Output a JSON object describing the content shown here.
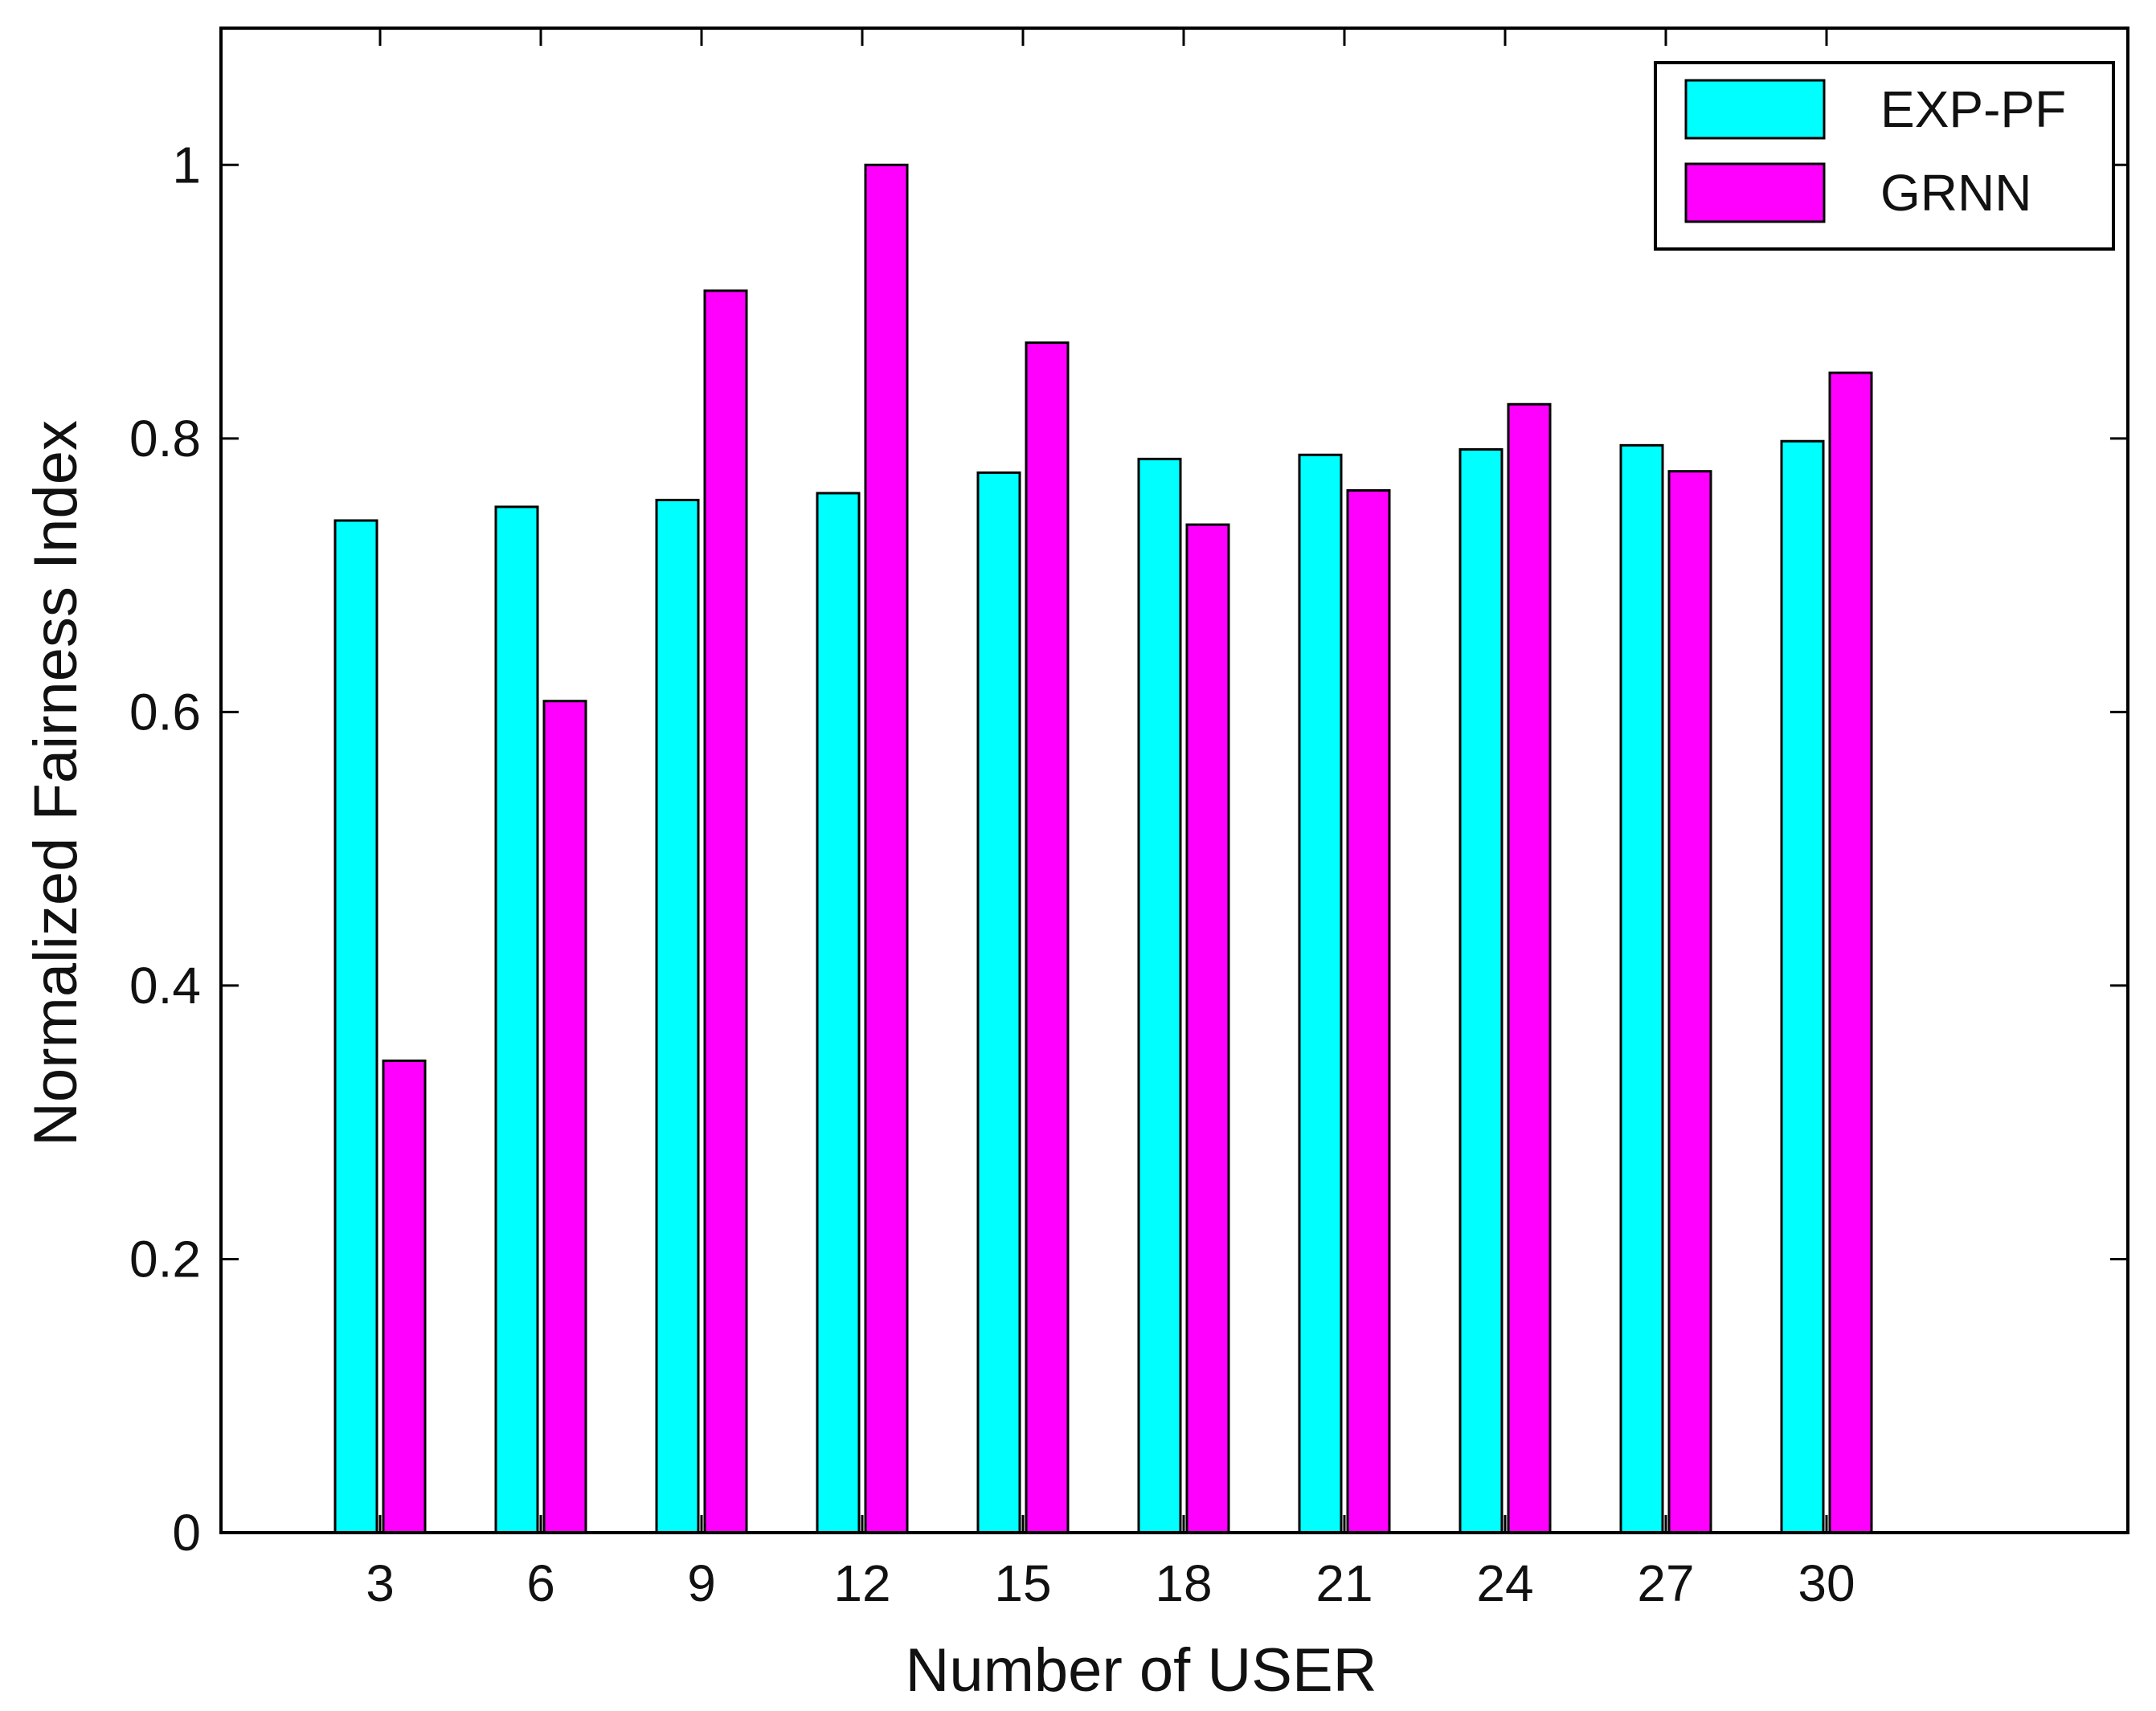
{
  "chart_data": {
    "type": "bar",
    "categories": [
      "3",
      "6",
      "9",
      "12",
      "15",
      "18",
      "21",
      "24",
      "27",
      "30"
    ],
    "series": [
      {
        "name": "EXP-PF",
        "color": "#00FFFF",
        "values": [
          0.74,
          0.75,
          0.755,
          0.76,
          0.775,
          0.785,
          0.788,
          0.792,
          0.795,
          0.798
        ]
      },
      {
        "name": "GRNN",
        "color": "#FF00FF",
        "values": [
          0.345,
          0.608,
          0.908,
          1.0,
          0.87,
          0.737,
          0.762,
          0.825,
          0.776,
          0.848
        ]
      }
    ],
    "xlabel": "Number of USER",
    "ylabel": "Normalized Fairness Index",
    "ylim": [
      0,
      1.1
    ],
    "yticks": [
      "0",
      "0.2",
      "0.4",
      "0.6",
      "0.8",
      "1"
    ],
    "legend_position": "top-right",
    "grid": false
  }
}
